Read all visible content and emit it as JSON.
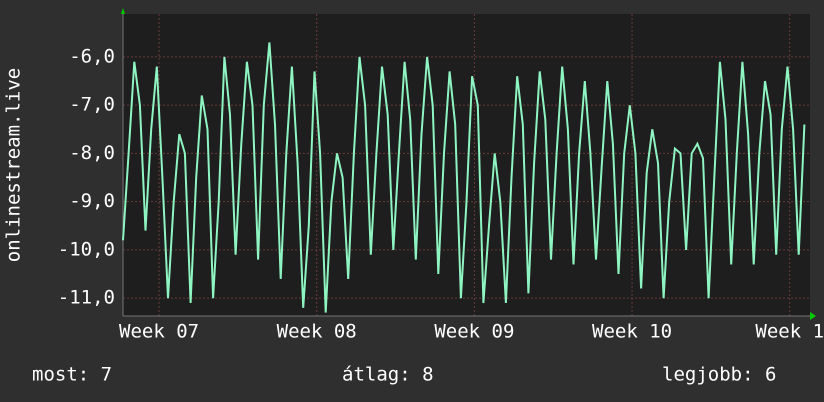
{
  "chart_data": {
    "type": "line",
    "y_label": "onlinestream.live",
    "x": [
      0,
      0.25,
      0.5,
      0.75,
      1,
      1.25,
      1.5,
      1.75,
      2,
      2.25,
      2.5,
      2.75,
      3,
      3.25,
      3.5,
      3.75,
      4,
      4.25,
      4.5,
      4.75,
      5,
      5.25,
      5.5,
      5.75,
      6,
      6.25,
      6.5,
      6.75,
      7,
      7.25,
      7.5,
      7.75,
      8,
      8.25,
      8.5,
      8.75,
      9,
      9.25,
      9.5,
      9.75,
      10,
      10.25,
      10.5,
      10.75,
      11,
      11.25,
      11.5,
      11.75,
      12,
      12.25,
      12.5,
      12.75,
      13,
      13.25,
      13.5,
      13.75,
      14,
      14.25,
      14.5,
      14.75,
      15,
      15.25,
      15.5,
      15.75,
      16,
      16.25,
      16.5,
      16.75,
      17,
      17.25,
      17.5,
      17.75,
      18,
      18.25,
      18.5,
      18.75,
      19,
      19.25,
      19.5,
      19.75,
      20,
      20.25,
      20.5,
      20.75,
      21,
      21.25,
      21.5,
      21.75,
      22,
      22.25,
      22.5,
      22.75,
      23,
      23.25,
      23.5,
      23.75,
      24,
      24.25,
      24.5,
      24.75,
      25,
      25.25,
      25.5,
      25.75,
      26,
      26.25,
      26.5,
      26.75,
      27,
      27.25,
      27.5,
      27.75,
      28,
      28.25,
      28.5,
      28.75,
      29,
      29.25,
      29.5,
      29.75,
      30,
      30.25
    ],
    "series": [
      {
        "color": "#8ef5c2",
        "values": [
          -9.8,
          -8.0,
          -6.1,
          -7.0,
          -9.6,
          -7.5,
          -6.2,
          -8.5,
          -11.0,
          -9.0,
          -7.6,
          -8.0,
          -11.1,
          -8.5,
          -6.8,
          -7.5,
          -11.0,
          -9.0,
          -6.0,
          -7.2,
          -10.1,
          -7.8,
          -6.1,
          -7.0,
          -10.2,
          -7.0,
          -5.7,
          -7.4,
          -10.6,
          -8.0,
          -6.2,
          -8.2,
          -11.2,
          -9.5,
          -6.3,
          -8.0,
          -11.3,
          -9.0,
          -8.0,
          -8.5,
          -10.6,
          -8.0,
          -6.0,
          -7.0,
          -10.1,
          -8.0,
          -6.2,
          -7.2,
          -10.0,
          -8.0,
          -6.1,
          -7.3,
          -10.2,
          -7.6,
          -6.0,
          -7.0,
          -10.5,
          -8.0,
          -6.3,
          -7.4,
          -11.0,
          -9.0,
          -6.4,
          -7.0,
          -11.1,
          -9.5,
          -8.0,
          -9.0,
          -11.1,
          -8.5,
          -6.4,
          -7.4,
          -10.9,
          -8.2,
          -6.3,
          -7.3,
          -10.2,
          -8.0,
          -6.2,
          -7.5,
          -10.3,
          -8.0,
          -6.5,
          -8.0,
          -10.2,
          -8.3,
          -6.5,
          -7.8,
          -10.5,
          -8.0,
          -7.0,
          -8.0,
          -10.8,
          -8.4,
          -7.5,
          -8.2,
          -11.0,
          -9.0,
          -7.9,
          -8.0,
          -10.0,
          -8.0,
          -7.8,
          -8.1,
          -11.0,
          -8.5,
          -6.1,
          -7.3,
          -10.3,
          -8.0,
          -6.1,
          -7.6,
          -10.3,
          -8.0,
          -6.5,
          -7.2,
          -10.1,
          -7.5,
          -6.2,
          -7.5,
          -10.1,
          -7.4
        ]
      }
    ],
    "xlim": [
      0,
      30.5
    ],
    "xticks": [
      {
        "value": 1.6,
        "label": "Week 07"
      },
      {
        "value": 8.6,
        "label": "Week 08"
      },
      {
        "value": 15.6,
        "label": "Week 09"
      },
      {
        "value": 22.6,
        "label": "Week 10"
      },
      {
        "value": 29.6,
        "label": "Week 1"
      }
    ],
    "ylim": [
      -11.37,
      -5.11
    ],
    "yticks": [
      {
        "value": -11,
        "label": "-11,0"
      },
      {
        "value": -10,
        "label": "-10,0"
      },
      {
        "value": -9,
        "label": "-9,0"
      },
      {
        "value": -8,
        "label": "-8,0"
      },
      {
        "value": -7,
        "label": "-7,0"
      },
      {
        "value": -6,
        "label": "-6,0"
      }
    ],
    "grid": true,
    "footer": [
      "most: 7",
      "átlag: 8",
      "legjobb: 6"
    ]
  }
}
